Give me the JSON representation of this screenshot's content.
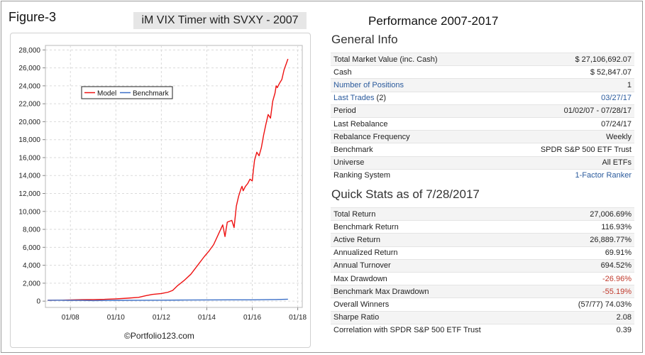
{
  "figure_label": "Figure-3",
  "chart_title": "iM VIX Timer with SVXY - 2007",
  "performance_title": "Performance 2007-2017",
  "copyright": "©Portfolio123.com",
  "colors": {
    "model": "#ee1111",
    "benchmark": "#3b6fc7",
    "link": "#2a5a9c",
    "negative": "#c0392b"
  },
  "general_info": {
    "title": "General Info",
    "rows": [
      {
        "label": "Total Market Value (inc. Cash)",
        "value": "$ 27,106,692.07"
      },
      {
        "label": "Cash",
        "value": "$ 52,847.07"
      },
      {
        "label": "Number of Positions",
        "value": "1",
        "link": true
      },
      {
        "label": "Last Trades",
        "suffix": "(2)",
        "value": "03/27/17",
        "link": true
      },
      {
        "label": "Period",
        "value": "01/02/07 - 07/28/17"
      },
      {
        "label": "Last Rebalance",
        "value": "07/24/17"
      },
      {
        "label": "Rebalance Frequency",
        "value": "Weekly"
      },
      {
        "label": "Benchmark",
        "value": "SPDR S&P 500 ETF Trust"
      },
      {
        "label": "Universe",
        "value": "All ETFs"
      },
      {
        "label": "Ranking System",
        "value": "1-Factor Ranker",
        "value_link": true
      }
    ]
  },
  "quick_stats": {
    "title": "Quick Stats as of 7/28/2017",
    "rows": [
      {
        "label": "Total Return",
        "value": "27,006.69%"
      },
      {
        "label": "Benchmark Return",
        "value": "116.93%"
      },
      {
        "label": "Active Return",
        "value": "26,889.77%"
      },
      {
        "label": "Annualized Return",
        "value": "69.91%"
      },
      {
        "label": "Annual Turnover",
        "value": "694.52%"
      },
      {
        "label": "Max Drawdown",
        "value": "-26.96%",
        "negative": true
      },
      {
        "label": "Benchmark Max Drawdown",
        "value": "-55.19%",
        "negative": true
      },
      {
        "label": "Overall Winners",
        "value": "(57/77) 74.03%"
      },
      {
        "label": "Sharpe Ratio",
        "value": "2.08"
      },
      {
        "label": "Correlation with SPDR S&P 500 ETF Trust",
        "value": "0.39"
      }
    ]
  },
  "chart_data": {
    "type": "line",
    "legend_position": "upper-left",
    "grid": true,
    "ylim": [
      -700,
      28500
    ],
    "yticks": [
      0,
      2000,
      4000,
      6000,
      8000,
      10000,
      12000,
      14000,
      16000,
      18000,
      20000,
      22000,
      24000,
      26000,
      28000
    ],
    "ytick_labels": [
      "0",
      "2,000",
      "4,000",
      "6,000",
      "8,000",
      "10,000",
      "12,000",
      "14,000",
      "16,000",
      "18,000",
      "20,000",
      "22,000",
      "24,000",
      "26,000",
      "28,000"
    ],
    "xlim": [
      2006.9,
      2018.2
    ],
    "xticks": [
      2008,
      2010,
      2012,
      2014,
      2016,
      2018
    ],
    "xtick_labels": [
      "01/08",
      "01/10",
      "01/12",
      "01/14",
      "01/16",
      "01/18"
    ],
    "series": [
      {
        "name": "Model",
        "x": [
          2007.0,
          2007.5,
          2008.0,
          2008.5,
          2009.0,
          2009.5,
          2010.0,
          2010.5,
          2011.0,
          2011.3,
          2011.6,
          2012.0,
          2012.3,
          2012.5,
          2012.7,
          2013.0,
          2013.3,
          2013.6,
          2013.9,
          2014.1,
          2014.3,
          2014.5,
          2014.7,
          2014.8,
          2014.9,
          2015.1,
          2015.2,
          2015.3,
          2015.4,
          2015.5,
          2015.55,
          2015.6,
          2015.7,
          2015.8,
          2015.9,
          2016.0,
          2016.05,
          2016.1,
          2016.2,
          2016.3,
          2016.4,
          2016.5,
          2016.6,
          2016.7,
          2016.8,
          2016.9,
          2017.0,
          2017.05,
          2017.1,
          2017.2,
          2017.3,
          2017.4,
          2017.5,
          2017.57
        ],
        "y": [
          100,
          110,
          130,
          160,
          180,
          200,
          260,
          330,
          420,
          600,
          750,
          850,
          1000,
          1200,
          1700,
          2300,
          3000,
          4000,
          5000,
          5600,
          6300,
          7400,
          8500,
          7200,
          8800,
          9000,
          8200,
          10600,
          11700,
          12500,
          12800,
          12300,
          12800,
          13100,
          13600,
          13400,
          14600,
          15700,
          16600,
          16200,
          17100,
          18500,
          19700,
          20800,
          20400,
          22300,
          23200,
          24000,
          23800,
          24300,
          24700,
          25800,
          26500,
          27000
        ]
      },
      {
        "name": "Benchmark",
        "x": [
          2007.0,
          2007.5,
          2008.0,
          2008.5,
          2009.0,
          2009.5,
          2010.0,
          2011.0,
          2012.0,
          2013.0,
          2014.0,
          2015.0,
          2016.0,
          2017.0,
          2017.57
        ],
        "y": [
          100,
          105,
          95,
          80,
          60,
          75,
          90,
          100,
          105,
          120,
          140,
          150,
          150,
          180,
          217
        ]
      }
    ]
  }
}
